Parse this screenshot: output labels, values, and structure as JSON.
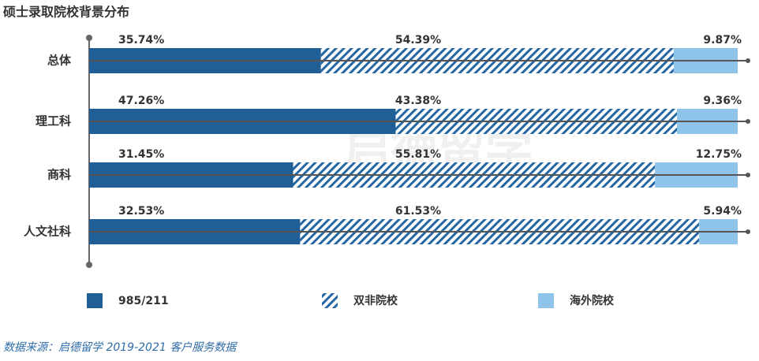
{
  "chart_data": {
    "type": "stacked-barh",
    "title": "硕士录取院校背景分布",
    "categories": [
      "总体",
      "理工科",
      "商科",
      "人文社科"
    ],
    "series": [
      {
        "name": "985/211",
        "color": "#1f5f96",
        "pattern": "solid",
        "values": [
          35.74,
          47.26,
          31.45,
          32.53
        ],
        "value_labels": [
          "35.74%",
          "47.26%",
          "31.45%",
          "32.53%"
        ]
      },
      {
        "name": "双非院校",
        "color": "#2467a3",
        "pattern": "hatch",
        "values": [
          54.39,
          43.38,
          55.81,
          61.53
        ],
        "value_labels": [
          "54.39%",
          "43.38%",
          "55.81%",
          "61.53%"
        ]
      },
      {
        "name": "海外院校",
        "color": "#8ec3ea",
        "pattern": "solid",
        "values": [
          9.87,
          9.36,
          12.75,
          5.94
        ],
        "value_labels": [
          "9.87%",
          "9.36%",
          "12.75%",
          "5.94%"
        ]
      }
    ],
    "watermark": "启德留学",
    "source": "数据来源：启德留学 2019-2021 客户服务数据"
  }
}
